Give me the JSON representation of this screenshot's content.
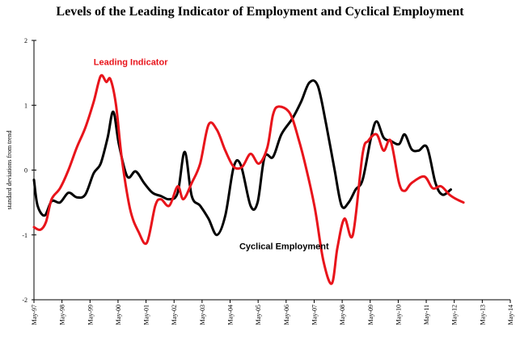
{
  "chart_data": {
    "type": "line",
    "title": "Levels of the Leading Indicator of Employment and Cyclical Employment",
    "ylabel": "standard deviations from trend",
    "xlabel": "",
    "ylim": [
      -2,
      2
    ],
    "yticks": [
      -2,
      -1,
      0,
      1,
      2
    ],
    "x_ticks": [
      "May-97",
      "May-98",
      "May-99",
      "May-00",
      "May-01",
      "May-02",
      "May-03",
      "May-04",
      "May-05",
      "May-06",
      "May-07",
      "May-08",
      "May-09",
      "May-10",
      "May-11",
      "May-12",
      "May-13",
      "May-14"
    ],
    "x_range": [
      1997.37,
      2014.37
    ],
    "series": [
      {
        "name": "Leading Indicator",
        "color": "#e8141b",
        "label_text": "Leading Indicator",
        "points": [
          [
            1997.37,
            -0.88
          ],
          [
            1997.6,
            -0.92
          ],
          [
            1997.8,
            -0.8
          ],
          [
            1998.0,
            -0.45
          ],
          [
            1998.3,
            -0.28
          ],
          [
            1998.6,
            0.0
          ],
          [
            1998.9,
            0.35
          ],
          [
            1999.2,
            0.65
          ],
          [
            1999.5,
            1.05
          ],
          [
            1999.75,
            1.45
          ],
          [
            1999.95,
            1.36
          ],
          [
            2000.1,
            1.4
          ],
          [
            2000.3,
            1.0
          ],
          [
            2000.5,
            0.2
          ],
          [
            2000.8,
            -0.6
          ],
          [
            2001.1,
            -0.95
          ],
          [
            2001.4,
            -1.12
          ],
          [
            2001.7,
            -0.55
          ],
          [
            2001.9,
            -0.45
          ],
          [
            2002.2,
            -0.55
          ],
          [
            2002.5,
            -0.25
          ],
          [
            2002.7,
            -0.45
          ],
          [
            2003.0,
            -0.2
          ],
          [
            2003.3,
            0.1
          ],
          [
            2003.6,
            0.7
          ],
          [
            2003.9,
            0.62
          ],
          [
            2004.2,
            0.3
          ],
          [
            2004.5,
            0.05
          ],
          [
            2004.8,
            0.05
          ],
          [
            2005.1,
            0.25
          ],
          [
            2005.4,
            0.1
          ],
          [
            2005.7,
            0.35
          ],
          [
            2005.9,
            0.85
          ],
          [
            2006.1,
            0.98
          ],
          [
            2006.5,
            0.88
          ],
          [
            2006.8,
            0.5
          ],
          [
            2007.1,
            0.0
          ],
          [
            2007.4,
            -0.6
          ],
          [
            2007.7,
            -1.4
          ],
          [
            2008.0,
            -1.75
          ],
          [
            2008.2,
            -1.2
          ],
          [
            2008.45,
            -0.75
          ],
          [
            2008.75,
            -1.0
          ],
          [
            2009.1,
            0.25
          ],
          [
            2009.3,
            0.45
          ],
          [
            2009.6,
            0.55
          ],
          [
            2009.85,
            0.3
          ],
          [
            2010.1,
            0.45
          ],
          [
            2010.4,
            -0.2
          ],
          [
            2010.6,
            -0.32
          ],
          [
            2010.85,
            -0.2
          ],
          [
            2011.3,
            -0.1
          ],
          [
            2011.6,
            -0.28
          ],
          [
            2011.9,
            -0.25
          ],
          [
            2012.2,
            -0.38
          ],
          [
            2012.45,
            -0.45
          ],
          [
            2012.7,
            -0.5
          ]
        ]
      },
      {
        "name": "Cyclical Employment",
        "color": "#000000",
        "label_text": "Cyclical Employment",
        "points": [
          [
            1997.37,
            -0.15
          ],
          [
            1997.5,
            -0.55
          ],
          [
            1997.75,
            -0.7
          ],
          [
            1998.0,
            -0.48
          ],
          [
            1998.3,
            -0.5
          ],
          [
            1998.6,
            -0.35
          ],
          [
            1998.9,
            -0.42
          ],
          [
            1999.2,
            -0.38
          ],
          [
            1999.5,
            -0.05
          ],
          [
            1999.75,
            0.1
          ],
          [
            2000.0,
            0.5
          ],
          [
            2000.2,
            0.9
          ],
          [
            2000.4,
            0.4
          ],
          [
            2000.7,
            -0.1
          ],
          [
            2001.0,
            -0.02
          ],
          [
            2001.3,
            -0.2
          ],
          [
            2001.6,
            -0.35
          ],
          [
            2001.9,
            -0.4
          ],
          [
            2002.2,
            -0.45
          ],
          [
            2002.5,
            -0.35
          ],
          [
            2002.75,
            0.28
          ],
          [
            2003.0,
            -0.4
          ],
          [
            2003.3,
            -0.55
          ],
          [
            2003.6,
            -0.75
          ],
          [
            2003.9,
            -1.0
          ],
          [
            2004.2,
            -0.7
          ],
          [
            2004.5,
            0.05
          ],
          [
            2004.75,
            0.08
          ],
          [
            2005.1,
            -0.55
          ],
          [
            2005.35,
            -0.5
          ],
          [
            2005.6,
            0.2
          ],
          [
            2005.9,
            0.2
          ],
          [
            2006.2,
            0.55
          ],
          [
            2006.6,
            0.8
          ],
          [
            2006.9,
            1.05
          ],
          [
            2007.2,
            1.35
          ],
          [
            2007.5,
            1.3
          ],
          [
            2007.8,
            0.7
          ],
          [
            2008.1,
            0.0
          ],
          [
            2008.35,
            -0.55
          ],
          [
            2008.6,
            -0.5
          ],
          [
            2008.85,
            -0.3
          ],
          [
            2009.1,
            -0.15
          ],
          [
            2009.4,
            0.5
          ],
          [
            2009.6,
            0.75
          ],
          [
            2009.85,
            0.5
          ],
          [
            2010.1,
            0.45
          ],
          [
            2010.4,
            0.4
          ],
          [
            2010.6,
            0.55
          ],
          [
            2010.85,
            0.32
          ],
          [
            2011.1,
            0.3
          ],
          [
            2011.4,
            0.35
          ],
          [
            2011.7,
            -0.2
          ],
          [
            2011.95,
            -0.38
          ],
          [
            2012.25,
            -0.3
          ]
        ]
      }
    ]
  }
}
